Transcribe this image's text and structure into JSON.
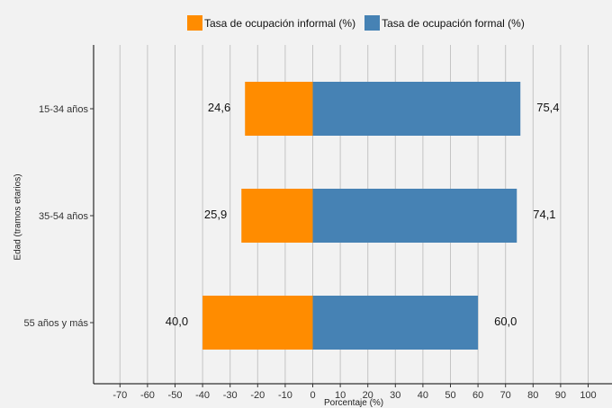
{
  "chart_data": {
    "type": "bar",
    "orientation": "horizontal",
    "stacked": true,
    "categories": [
      "15-34 años",
      "35-54 años",
      "55 años y más"
    ],
    "series": [
      {
        "name": "Tasa de ocupación informal (%)",
        "values": [
          24.6,
          25.9,
          40.0
        ],
        "labels": [
          "24,6",
          "25,9",
          "40,0"
        ],
        "color": "#ff8c00",
        "direction": "negative"
      },
      {
        "name": "Tasa de ocupación formal (%)",
        "values": [
          75.4,
          74.1,
          60.0
        ],
        "labels": [
          "75,4",
          "74,1",
          "60,0"
        ],
        "color": "#4682b4",
        "direction": "positive"
      }
    ],
    "title": "",
    "xlabel": "Porcentaje (%)",
    "ylabel": "Edad (tramos etarios)",
    "xlim": [
      -70,
      100
    ],
    "xticks": [
      -70,
      -60,
      -50,
      -40,
      -30,
      -20,
      -10,
      0,
      10,
      20,
      30,
      40,
      50,
      60,
      70,
      80,
      90,
      100
    ],
    "grid": "vertical",
    "legend_position": "top"
  }
}
